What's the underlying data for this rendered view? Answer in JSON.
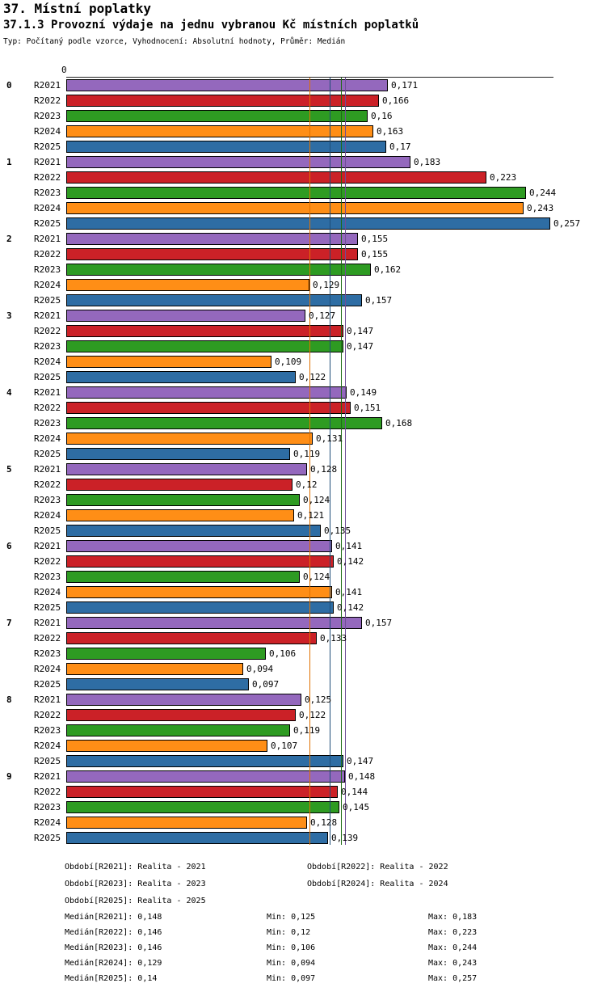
{
  "title": "37. Místní poplatky",
  "subtitle": "37.1.3 Provozní výdaje na jednu vybranou Kč místních poplatků",
  "meta": "Typ: Počítaný podle vzorce, Vyhodnocení: Absolutní hodnoty, Průměr: Medián",
  "chart_data": {
    "type": "bar",
    "orientation": "horizontal",
    "title": "37.1.3 Provozní výdaje na jednu vybranou Kč místních poplatků",
    "x_axis": {
      "zero_label": "0",
      "min": 0,
      "max": 0.26,
      "gridlines": false
    },
    "groups": [
      "0",
      "1",
      "2",
      "3",
      "4",
      "5",
      "6",
      "7",
      "8",
      "9"
    ],
    "series": [
      {
        "name": "R2021",
        "color": "#9468bd",
        "line_color": "#6f4d96",
        "median": 0.148
      },
      {
        "name": "R2022",
        "color": "#cb2127",
        "line_color": "#8f1317",
        "median": 0.146
      },
      {
        "name": "R2023",
        "color": "#2e9b22",
        "line_color": "#1d6a15",
        "median": 0.146
      },
      {
        "name": "R2024",
        "color": "#ff8e16",
        "line_color": "#e07000",
        "median": 0.129
      },
      {
        "name": "R2025",
        "color": "#2e6da4",
        "line_color": "#1d4c77",
        "median": 0.14
      }
    ],
    "values": [
      [
        0.171,
        0.166,
        0.16,
        0.163,
        0.17
      ],
      [
        0.183,
        0.223,
        0.244,
        0.243,
        0.257
      ],
      [
        0.155,
        0.155,
        0.162,
        0.129,
        0.157
      ],
      [
        0.127,
        0.147,
        0.147,
        0.109,
        0.122
      ],
      [
        0.149,
        0.151,
        0.168,
        0.131,
        0.119
      ],
      [
        0.128,
        0.12,
        0.124,
        0.121,
        0.135
      ],
      [
        0.141,
        0.142,
        0.124,
        0.141,
        0.142
      ],
      [
        0.157,
        0.133,
        0.106,
        0.094,
        0.097
      ],
      [
        0.125,
        0.122,
        0.119,
        0.107,
        0.147
      ],
      [
        0.148,
        0.144,
        0.145,
        0.128,
        0.139
      ]
    ],
    "value_labels": [
      [
        "0,171",
        "0,166",
        "0,16",
        "0,163",
        "0,17"
      ],
      [
        "0,183",
        "0,223",
        "0,244",
        "0,243",
        "0,257"
      ],
      [
        "0,155",
        "0,155",
        "0,162",
        "0,129",
        "0,157"
      ],
      [
        "0,127",
        "0,147",
        "0,147",
        "0,109",
        "0,122"
      ],
      [
        "0,149",
        "0,151",
        "0,168",
        "0,131",
        "0,119"
      ],
      [
        "0,128",
        "0,12",
        "0,124",
        "0,121",
        "0,135"
      ],
      [
        "0,141",
        "0,142",
        "0,124",
        "0,141",
        "0,142"
      ],
      [
        "0,157",
        "0,133",
        "0,106",
        "0,094",
        "0,097"
      ],
      [
        "0,125",
        "0,122",
        "0,119",
        "0,107",
        "0,147"
      ],
      [
        "0,148",
        "0,144",
        "0,145",
        "0,128",
        "0,139"
      ]
    ]
  },
  "legend": {
    "items": [
      "Období[R2021]: Realita - 2021",
      "Období[R2022]: Realita - 2022",
      "Období[R2023]: Realita - 2023",
      "Období[R2024]: Realita - 2024",
      "Období[R2025]: Realita - 2025"
    ]
  },
  "stats": {
    "rows": [
      [
        "Medián[R2021]: 0,148",
        "Min: 0,125",
        "Max: 0,183"
      ],
      [
        "Medián[R2022]: 0,146",
        "Min: 0,12",
        "Max: 0,223"
      ],
      [
        "Medián[R2023]: 0,146",
        "Min: 0,106",
        "Max: 0,244"
      ],
      [
        "Medián[R2024]: 0,129",
        "Min: 0,094",
        "Max: 0,243"
      ],
      [
        "Medián[R2025]: 0,14",
        "Min: 0,097",
        "Max: 0,257"
      ]
    ]
  }
}
